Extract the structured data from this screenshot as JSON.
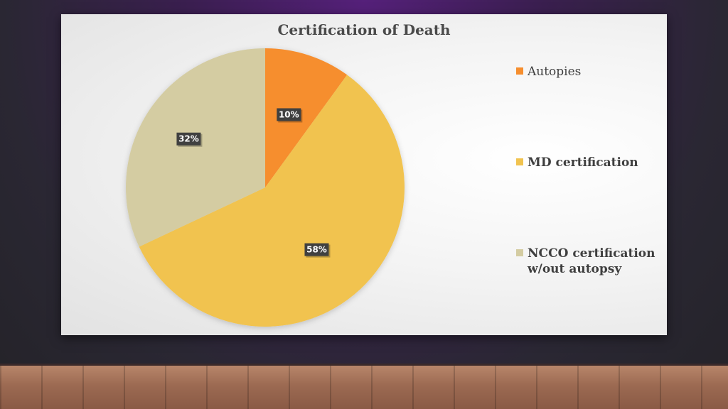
{
  "chart_data": {
    "type": "pie",
    "title": "Certification of Death",
    "slices": [
      {
        "label": "Autopies",
        "value": 10,
        "display": "10%",
        "color": "#f68e2e"
      },
      {
        "label": "MD certification",
        "value": 58,
        "display": "58%",
        "color": "#f1c34f"
      },
      {
        "label": "NCCO certification w/out autopsy",
        "value": 32,
        "display": "32%",
        "color": "#d4cca2"
      }
    ],
    "legend_position": "right"
  },
  "legend": {
    "items": [
      {
        "line1": "Autopies",
        "line2": ""
      },
      {
        "line1": "MD certification",
        "line2": ""
      },
      {
        "line1": "NCCO certification",
        "line2": "w/out autopsy"
      }
    ]
  }
}
